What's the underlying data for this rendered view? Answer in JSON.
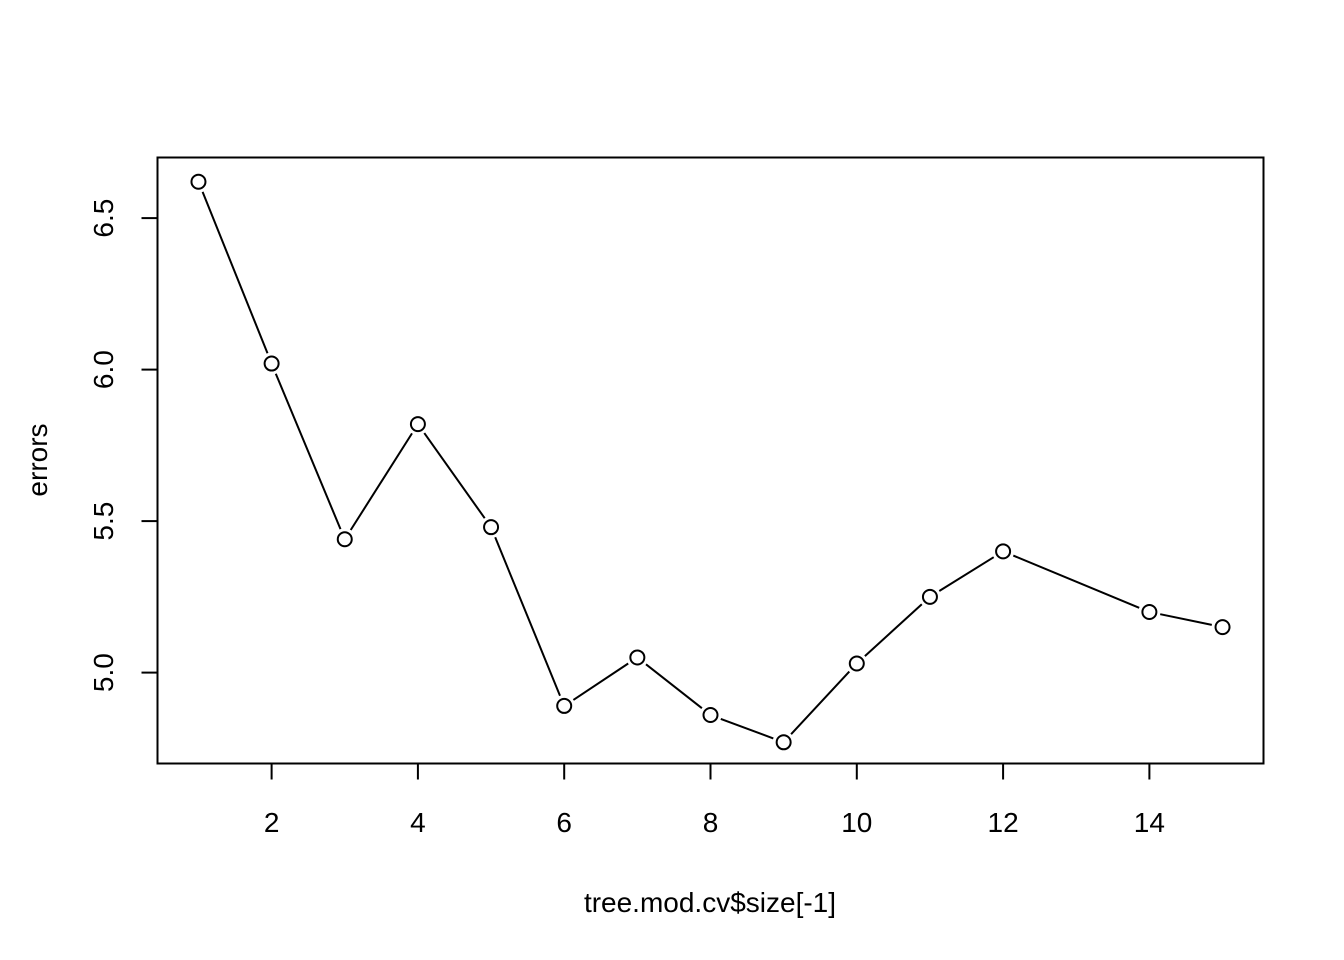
{
  "chart_data": {
    "type": "line",
    "title": "",
    "xlabel": "tree.mod.cv$size[-1]",
    "ylabel": "errors",
    "x": [
      1,
      2,
      3,
      4,
      5,
      6,
      7,
      8,
      9,
      10,
      11,
      12,
      14,
      15
    ],
    "series": [
      {
        "values": [
          6.62,
          6.02,
          5.44,
          5.82,
          5.48,
          4.89,
          5.05,
          4.86,
          4.77,
          5.03,
          5.25,
          5.4,
          5.2,
          5.15
        ]
      }
    ],
    "xlim": [
      0.44,
      15.56
    ],
    "ylim": [
      4.7,
      6.7
    ],
    "x_ticks": [
      2,
      4,
      6,
      8,
      10,
      12,
      14
    ],
    "x_tick_labels": [
      "2",
      "4",
      "6",
      "8",
      "10",
      "12",
      "14"
    ],
    "y_ticks": [
      5.0,
      5.5,
      6.0,
      6.5
    ],
    "y_tick_labels": [
      "5.0",
      "5.5",
      "6.0",
      "6.5"
    ],
    "grid": false,
    "marker": "open-circle",
    "line_color": "#000000"
  }
}
